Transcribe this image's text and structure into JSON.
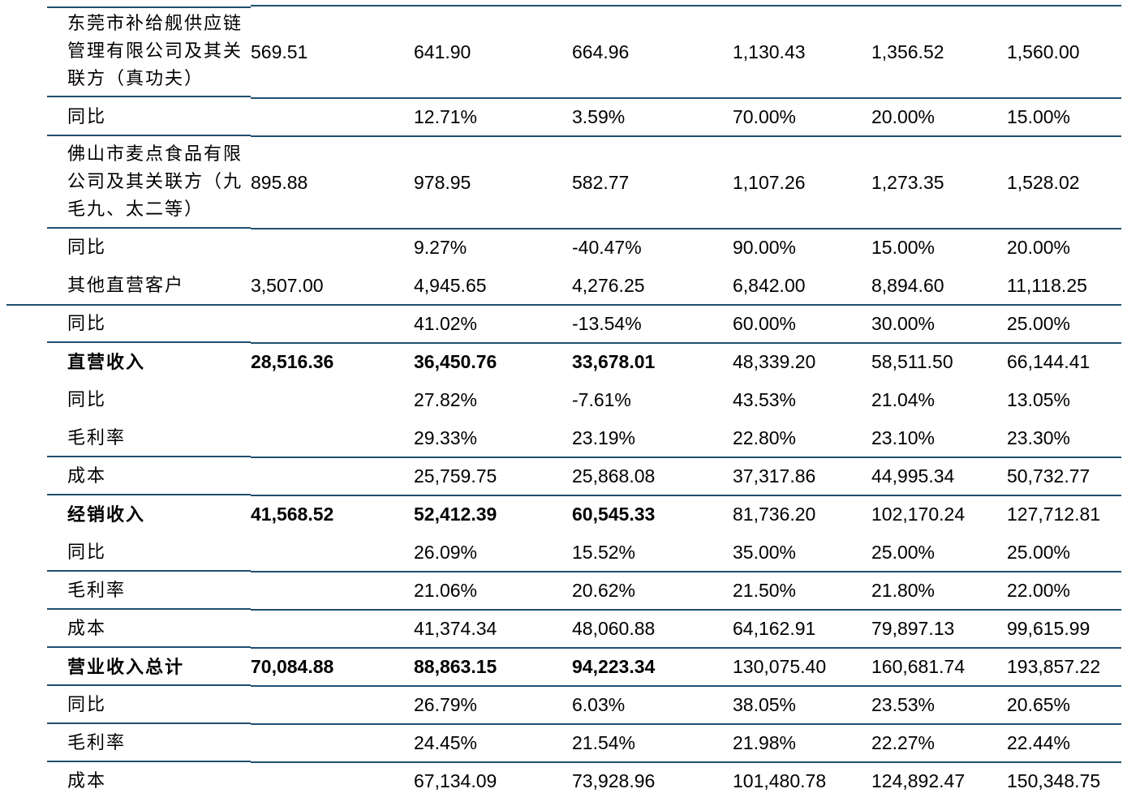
{
  "rows": [
    {
      "label": "东莞市补给舰供应链管理有限公司及其关联方（真功夫）",
      "values": [
        "569.51",
        "641.90",
        "664.96",
        "1,130.43",
        "1,356.52",
        "1,560.00"
      ],
      "bold": false
    },
    {
      "label": "同比",
      "values": [
        "",
        "12.71%",
        "3.59%",
        "70.00%",
        "20.00%",
        "15.00%"
      ],
      "bold": false
    },
    {
      "label": "佛山市麦点食品有限公司及其关联方（九毛九、太二等）",
      "values": [
        "895.88",
        "978.95",
        "582.77",
        "1,107.26",
        "1,273.35",
        "1,528.02"
      ],
      "bold": false
    },
    {
      "label": "同比",
      "values": [
        "",
        "9.27%",
        "-40.47%",
        "90.00%",
        "15.00%",
        "20.00%"
      ],
      "bold": false
    },
    {
      "label": "其他直营客户",
      "values": [
        "3,507.00",
        "4,945.65",
        "4,276.25",
        "6,842.00",
        "8,894.60",
        "11,118.25"
      ],
      "bold": false
    },
    {
      "label": "同比",
      "values": [
        "",
        "41.02%",
        "-13.54%",
        "60.00%",
        "30.00%",
        "25.00%"
      ],
      "bold": false
    },
    {
      "label": "直营收入",
      "values": [
        "28,516.36",
        "36,450.76",
        "33,678.01",
        "48,339.20",
        "58,511.50",
        "66,144.41"
      ],
      "bold": true
    },
    {
      "label": "同比",
      "values": [
        "",
        "27.82%",
        "-7.61%",
        "43.53%",
        "21.04%",
        "13.05%"
      ],
      "bold": false
    },
    {
      "label": "毛利率",
      "values": [
        "",
        "29.33%",
        "23.19%",
        "22.80%",
        "23.10%",
        "23.30%"
      ],
      "bold": false
    },
    {
      "label": "成本",
      "values": [
        "",
        "25,759.75",
        "25,868.08",
        "37,317.86",
        "44,995.34",
        "50,732.77"
      ],
      "bold": false
    },
    {
      "label": "经销收入",
      "values": [
        "41,568.52",
        "52,412.39",
        "60,545.33",
        "81,736.20",
        "102,170.24",
        "127,712.81"
      ],
      "bold": true
    },
    {
      "label": "同比",
      "values": [
        "",
        "26.09%",
        "15.52%",
        "35.00%",
        "25.00%",
        "25.00%"
      ],
      "bold": false
    },
    {
      "label": "毛利率",
      "values": [
        "",
        "21.06%",
        "20.62%",
        "21.50%",
        "21.80%",
        "22.00%"
      ],
      "bold": false
    },
    {
      "label": "成本",
      "values": [
        "",
        "41,374.34",
        "48,060.88",
        "64,162.91",
        "79,897.13",
        "99,615.99"
      ],
      "bold": false
    },
    {
      "label": "营业收入总计",
      "values": [
        "70,084.88",
        "88,863.15",
        "94,223.34",
        "130,075.40",
        "160,681.74",
        "193,857.22"
      ],
      "bold": true
    },
    {
      "label": "同比",
      "values": [
        "",
        "26.79%",
        "6.03%",
        "38.05%",
        "23.53%",
        "20.65%"
      ],
      "bold": false
    },
    {
      "label": "毛利率",
      "values": [
        "",
        "24.45%",
        "21.54%",
        "21.98%",
        "22.27%",
        "22.44%"
      ],
      "bold": false
    },
    {
      "label": "成本",
      "values": [
        "",
        "67,134.09",
        "73,928.96",
        "101,480.78",
        "124,892.47",
        "150,348.75"
      ],
      "bold": false
    }
  ]
}
